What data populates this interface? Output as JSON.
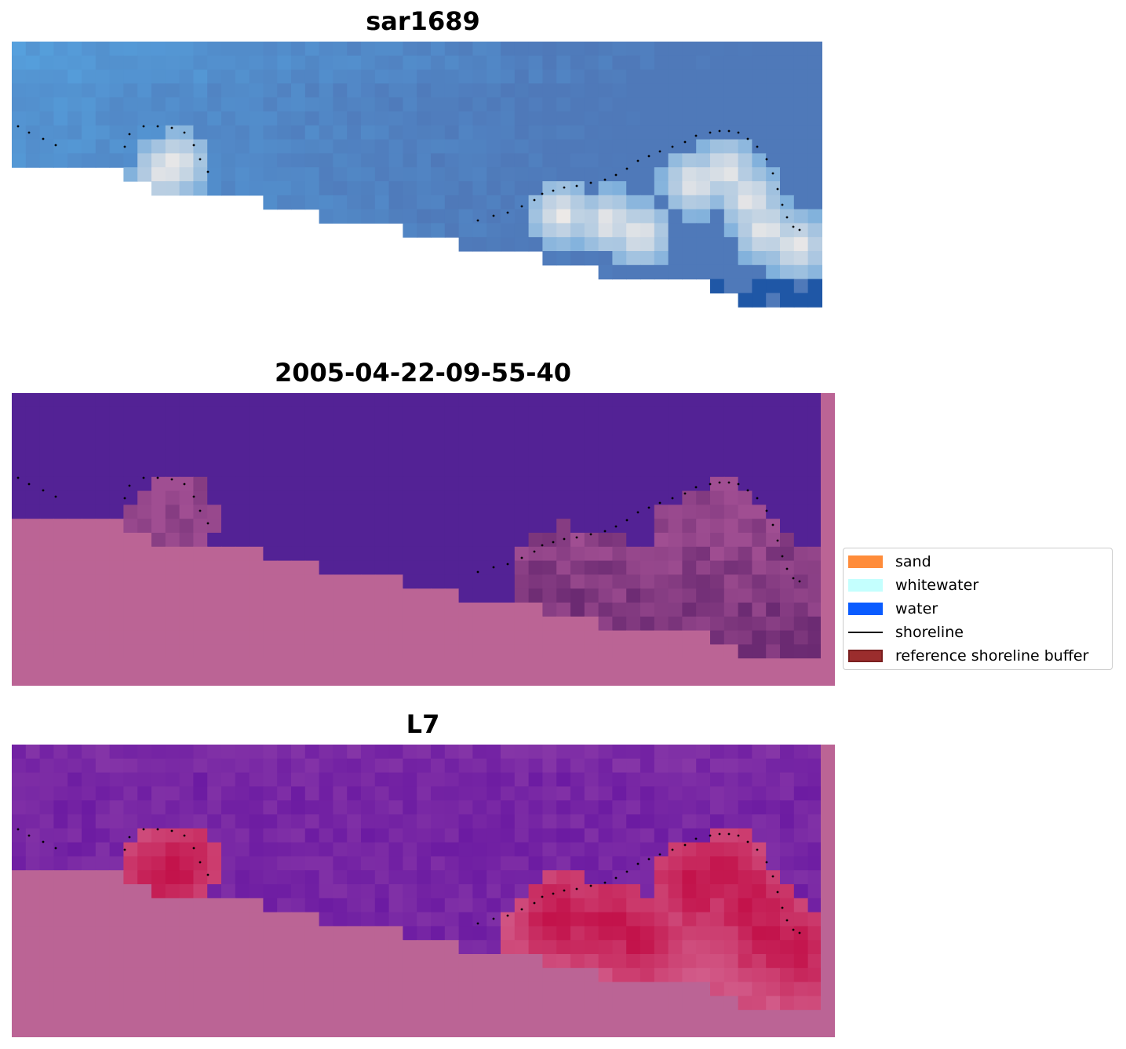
{
  "panels": [
    {
      "title": "sar1689",
      "palette": "sar"
    },
    {
      "title": "2005-04-22-09-55-40",
      "palette": "class"
    },
    {
      "title": "L7",
      "palette": "index"
    }
  ],
  "legend": {
    "items": [
      {
        "label": "sand",
        "kind": "patch",
        "color": "#ff8c3a"
      },
      {
        "label": "whitewater",
        "kind": "patch",
        "color": "#c4fffe"
      },
      {
        "label": "water",
        "kind": "patch",
        "color": "#0a5cff"
      },
      {
        "label": "shoreline",
        "kind": "line",
        "color": "#000000"
      },
      {
        "label": "reference shoreline buffer",
        "kind": "patch",
        "color": "#9b2d2d",
        "edge": "#7a1f1f"
      }
    ]
  },
  "colors": {
    "land_mask": "#bb6495",
    "water_class": "#532295",
    "sar_deep": "#4f79b9",
    "sar_light": "#58aee9",
    "foam": "#f2ece8",
    "index_purple": "#6c1ba2",
    "index_red": "#c3134b",
    "shoreline": "#000000"
  }
}
